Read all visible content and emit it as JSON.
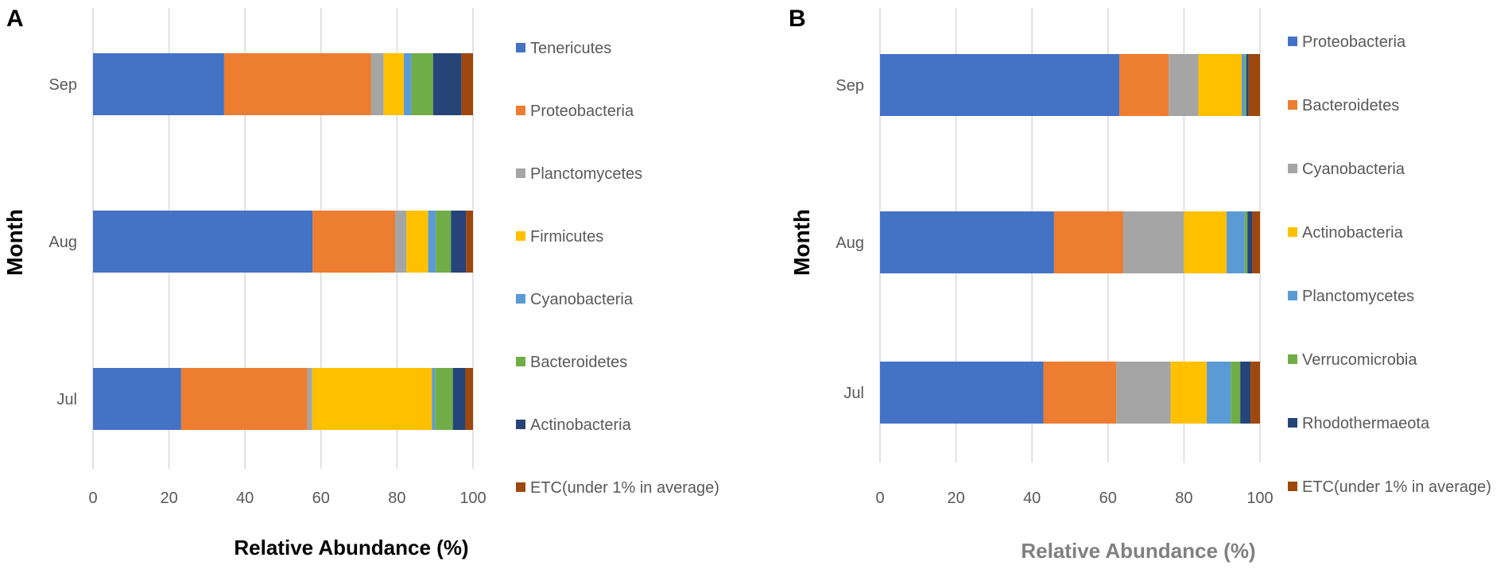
{
  "chart_data": [
    {
      "panel_label": "A",
      "type": "bar",
      "orientation": "horizontal",
      "stacked": true,
      "categories": [
        "Sep",
        "Aug",
        "Jul"
      ],
      "xlabel": "Relative Abundance (%)",
      "ylabel": "Month",
      "xlim": [
        0,
        100
      ],
      "x_ticks": [
        "0",
        "20",
        "40",
        "60",
        "80",
        "100"
      ],
      "grid": true,
      "legend_position": "right",
      "series": [
        {
          "name": "Tenericutes",
          "color": "#4472C4",
          "values": [
            34.5,
            57.8,
            23.2
          ]
        },
        {
          "name": "Proteobacteria",
          "color": "#ED7D31",
          "values": [
            38.7,
            21.7,
            33.2
          ]
        },
        {
          "name": "Planctomycetes",
          "color": "#A5A5A5",
          "values": [
            3.3,
            3.0,
            1.3
          ]
        },
        {
          "name": "Firmicutes",
          "color": "#FFC000",
          "values": [
            5.3,
            5.7,
            31.5
          ]
        },
        {
          "name": "Cyanobacteria",
          "color": "#5B9BD5",
          "values": [
            2.0,
            2.0,
            0.8
          ]
        },
        {
          "name": "Bacteroidetes",
          "color": "#70AD47",
          "values": [
            5.7,
            4.0,
            4.7
          ]
        },
        {
          "name": "Actinobacteria",
          "color": "#264478",
          "values": [
            7.5,
            4.0,
            3.3
          ]
        },
        {
          "name": "ETC(under 1% in average)",
          "color": "#9E480E",
          "values": [
            3.0,
            1.8,
            2.0
          ]
        }
      ]
    },
    {
      "panel_label": "B",
      "type": "bar",
      "orientation": "horizontal",
      "stacked": true,
      "categories": [
        "Sep",
        "Aug",
        "Jul"
      ],
      "xlabel": "Relative Abundance (%)",
      "ylabel": "Month",
      "xlim": [
        0,
        100
      ],
      "x_ticks": [
        "0",
        "20",
        "40",
        "60",
        "80",
        "100"
      ],
      "grid": true,
      "legend_position": "right",
      "series": [
        {
          "name": "Proteobacteria",
          "color": "#4472C4",
          "values": [
            63.0,
            45.8,
            43.0
          ]
        },
        {
          "name": "Bacteroidetes",
          "color": "#ED7D31",
          "values": [
            13.0,
            18.2,
            19.2
          ]
        },
        {
          "name": "Cyanobacteria",
          "color": "#A5A5A5",
          "values": [
            7.8,
            16.0,
            14.3
          ]
        },
        {
          "name": "Actinobacteria",
          "color": "#FFC000",
          "values": [
            11.4,
            11.2,
            9.5
          ]
        },
        {
          "name": "Planctomycetes",
          "color": "#5B9BD5",
          "values": [
            0.8,
            4.8,
            6.3
          ]
        },
        {
          "name": "Verrucomicrobia",
          "color": "#70AD47",
          "values": [
            0.4,
            0.7,
            2.5
          ]
        },
        {
          "name": "Rhodothermaeota",
          "color": "#264478",
          "values": [
            0.6,
            1.3,
            2.7
          ]
        },
        {
          "name": "ETC(under 1% in average)",
          "color": "#9E480E",
          "values": [
            3.0,
            2.0,
            2.5
          ]
        }
      ]
    }
  ]
}
